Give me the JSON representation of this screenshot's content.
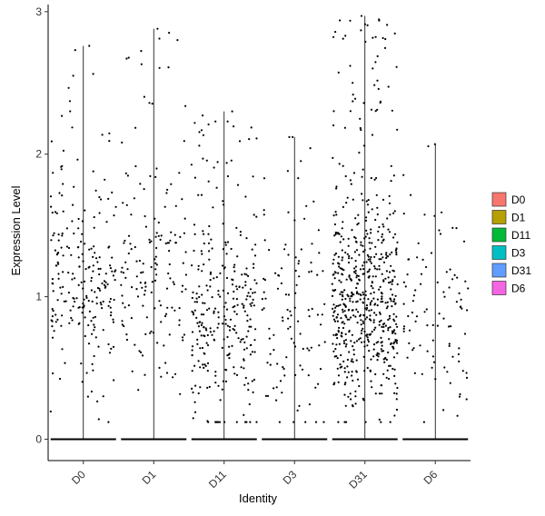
{
  "chart_data": {
    "type": "scatter",
    "subtype": "violin-jitter",
    "xlabel": "Identity",
    "ylabel": "Expression Level",
    "ylim": [
      -0.15,
      3.05
    ],
    "yticks": [
      0,
      1,
      2,
      3
    ],
    "grid": false,
    "legend_position": "right",
    "categories": [
      "D0",
      "D1",
      "D11",
      "D3",
      "D31",
      "D6"
    ],
    "series": [
      {
        "name": "D0",
        "color": "#F8766D",
        "max": 2.76,
        "expressing_points": 230,
        "mean_expressing": 0.95
      },
      {
        "name": "D1",
        "color": "#B79F00",
        "max": 2.88,
        "expressing_points": 160,
        "mean_expressing": 0.95
      },
      {
        "name": "D11",
        "color": "#00BA38",
        "max": 2.3,
        "expressing_points": 300,
        "mean_expressing": 0.65
      },
      {
        "name": "D3",
        "color": "#00BFC4",
        "max": 2.12,
        "expressing_points": 110,
        "mean_expressing": 0.65
      },
      {
        "name": "D31",
        "color": "#619CFF",
        "max": 2.97,
        "expressing_points": 620,
        "mean_expressing": 0.8
      },
      {
        "name": "D6",
        "color": "#F564E3",
        "max": 2.07,
        "expressing_points": 95,
        "mean_expressing": 0.7
      }
    ]
  }
}
